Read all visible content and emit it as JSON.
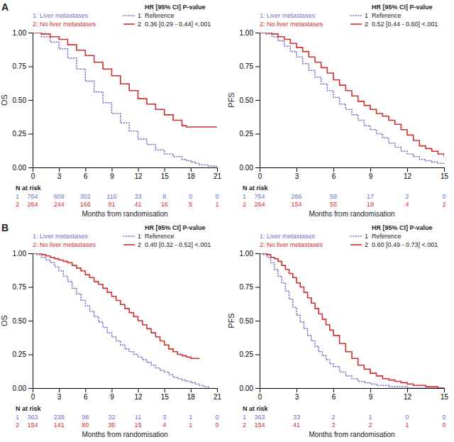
{
  "chart_data": [
    {
      "type": "step",
      "title": "A",
      "xlabel": "Months from randomisation",
      "ylabel": "OS",
      "xlim": [
        0,
        21
      ],
      "xticks": [
        0,
        3,
        6,
        9,
        12,
        15,
        18,
        21
      ],
      "ylim": [
        0,
        1.0
      ],
      "yticks": [
        {
          "value": 0.0,
          "label": "0.00"
        },
        0.25,
        {
          "value": 0.5,
          "label": "0.50"
        },
        0.75,
        {
          "value": 1.0,
          "label": "1.00"
        }
      ],
      "legend": "top",
      "legend_title": "HR [95% CI] P-value",
      "risk_title": "N at risk",
      "risk_times": [
        0,
        3,
        6,
        9,
        12,
        15,
        18,
        21
      ],
      "series": [
        {
          "name": "1: Liver metastases",
          "label": "1",
          "color": "#7070c8",
          "line_style": "dotted",
          "hr": "Reference",
          "x": [
            0,
            1,
            2,
            3,
            4,
            5,
            6,
            7,
            8,
            9,
            10,
            11,
            12,
            13,
            14,
            15,
            16,
            17,
            17.5,
            18,
            18.5,
            19,
            19.5,
            20,
            20.5,
            21
          ],
          "values": [
            1.0,
            0.97,
            0.93,
            0.88,
            0.81,
            0.73,
            0.64,
            0.56,
            0.48,
            0.4,
            0.33,
            0.27,
            0.21,
            0.17,
            0.13,
            0.1,
            0.08,
            0.06,
            0.05,
            0.04,
            0.03,
            0.02,
            0.02,
            0.01,
            0.01,
            0.01
          ],
          "at_risk": [
            764,
            609,
            302,
            116,
            33,
            8,
            0,
            0
          ]
        },
        {
          "name": "2: No liver metastases",
          "label": "2",
          "color": "#d03030",
          "line_style": "solid",
          "hr": "0.36 [0.29 - 0.44] <.001",
          "x": [
            0,
            1,
            2,
            3,
            4,
            5,
            6,
            7,
            8,
            9,
            10,
            11,
            12,
            13,
            14,
            15,
            16,
            17,
            17.5,
            18,
            18.5,
            19,
            19.5,
            20,
            20.5,
            21
          ],
          "values": [
            1.0,
            0.99,
            0.97,
            0.95,
            0.91,
            0.87,
            0.83,
            0.78,
            0.73,
            0.68,
            0.62,
            0.57,
            0.51,
            0.47,
            0.43,
            0.39,
            0.35,
            0.31,
            0.3,
            0.3,
            0.3,
            0.3,
            0.3,
            0.3,
            0.3,
            0.3
          ],
          "at_risk": [
            264,
            244,
            166,
            81,
            41,
            16,
            5,
            1
          ]
        }
      ]
    },
    {
      "type": "step",
      "xlabel": "Months from randomisation",
      "ylabel": "PFS",
      "xlim": [
        0,
        15
      ],
      "xticks": [
        0,
        3,
        6,
        9,
        12,
        15
      ],
      "ylim": [
        0,
        1.0
      ],
      "yticks": [
        {
          "value": 0.0,
          "label": "0.00"
        },
        0.25,
        {
          "value": 0.5,
          "label": "0.50"
        },
        0.75,
        {
          "value": 1.0,
          "label": "1.00"
        }
      ],
      "legend": "top",
      "legend_title": "HR [95% CI] P-value",
      "risk_title": "N at risk",
      "risk_times": [
        0,
        3,
        6,
        9,
        12,
        15
      ],
      "series": [
        {
          "name": "1: Liver metastases",
          "label": "1",
          "color": "#7070c8",
          "line_style": "dotted",
          "hr": "Reference",
          "x": [
            0,
            0.5,
            1,
            1.5,
            2,
            2.5,
            3,
            3.5,
            4,
            4.5,
            5,
            5.5,
            6,
            6.5,
            7,
            7.5,
            8,
            8.5,
            9,
            9.5,
            10,
            10.5,
            11,
            11.5,
            12,
            12.5,
            13,
            13.5,
            14,
            14.5,
            15
          ],
          "values": [
            1.0,
            0.99,
            0.97,
            0.94,
            0.9,
            0.86,
            0.82,
            0.77,
            0.72,
            0.67,
            0.62,
            0.57,
            0.52,
            0.47,
            0.43,
            0.39,
            0.35,
            0.31,
            0.28,
            0.25,
            0.22,
            0.18,
            0.15,
            0.12,
            0.1,
            0.08,
            0.06,
            0.05,
            0.04,
            0.03,
            0.02
          ],
          "at_risk": [
            764,
            266,
            59,
            17,
            2,
            0
          ]
        },
        {
          "name": "2: No liver metastases",
          "label": "2",
          "color": "#d03030",
          "line_style": "solid",
          "hr": "0.52 [0.44 - 0.60] <.001",
          "x": [
            0,
            0.5,
            1,
            1.5,
            2,
            2.5,
            3,
            3.5,
            4,
            4.5,
            5,
            5.5,
            6,
            6.5,
            7,
            7.5,
            8,
            8.5,
            9,
            9.5,
            10,
            10.5,
            11,
            11.5,
            12,
            12.5,
            13,
            13.5,
            14,
            14.5,
            15
          ],
          "values": [
            1.0,
            1.0,
            0.99,
            0.97,
            0.95,
            0.92,
            0.89,
            0.86,
            0.82,
            0.78,
            0.74,
            0.7,
            0.65,
            0.61,
            0.57,
            0.53,
            0.49,
            0.46,
            0.43,
            0.4,
            0.38,
            0.35,
            0.32,
            0.28,
            0.24,
            0.2,
            0.16,
            0.14,
            0.12,
            0.1,
            0.08
          ],
          "at_risk": [
            264,
            154,
            55,
            19,
            4,
            2
          ]
        }
      ]
    },
    {
      "type": "step",
      "title": "B",
      "xlabel": "Months from randomisation",
      "ylabel": "OS",
      "xlim": [
        0,
        21
      ],
      "xticks": [
        0,
        3,
        6,
        9,
        12,
        15,
        18,
        21
      ],
      "ylim": [
        0,
        1.0
      ],
      "yticks": [
        {
          "value": 0.0,
          "label": "0.00"
        },
        0.25,
        {
          "value": 0.5,
          "label": "0.50"
        },
        0.75,
        {
          "value": 1.0,
          "label": "1.00"
        }
      ],
      "legend": "top",
      "legend_title": "HR [95% CI] P-value",
      "risk_title": "N at risk",
      "risk_times": [
        0,
        3,
        6,
        9,
        12,
        15,
        18,
        21
      ],
      "series": [
        {
          "name": "1: Liver metastases",
          "label": "1",
          "color": "#7070c8",
          "line_style": "dotted",
          "hr": "Reference",
          "x": [
            0,
            0.5,
            1,
            1.5,
            2,
            2.5,
            3,
            3.5,
            4,
            4.5,
            5,
            5.5,
            6,
            6.5,
            7,
            7.5,
            8,
            8.5,
            9,
            9.5,
            10,
            10.5,
            11,
            11.5,
            12,
            12.5,
            13,
            13.5,
            14,
            14.5,
            15,
            15.5,
            16,
            16.5,
            17,
            17.5,
            18,
            18.5,
            19,
            19.5,
            20
          ],
          "values": [
            1.0,
            0.99,
            0.97,
            0.95,
            0.93,
            0.9,
            0.87,
            0.83,
            0.79,
            0.74,
            0.7,
            0.65,
            0.61,
            0.57,
            0.53,
            0.49,
            0.45,
            0.41,
            0.38,
            0.35,
            0.32,
            0.29,
            0.27,
            0.25,
            0.23,
            0.21,
            0.19,
            0.17,
            0.15,
            0.13,
            0.12,
            0.1,
            0.08,
            0.07,
            0.06,
            0.05,
            0.04,
            0.03,
            0.02,
            0.01,
            0.0
          ],
          "at_risk": [
            363,
            238,
            98,
            32,
            11,
            3,
            1,
            0
          ]
        },
        {
          "name": "2: No liver metastases",
          "label": "2",
          "color": "#d03030",
          "line_style": "solid",
          "hr": "0.40 [0.32 - 0.52] <.001",
          "x": [
            0,
            0.5,
            1,
            1.5,
            2,
            2.5,
            3,
            3.5,
            4,
            4.5,
            5,
            5.5,
            6,
            6.5,
            7,
            7.5,
            8,
            8.5,
            9,
            9.5,
            10,
            10.5,
            11,
            11.5,
            12,
            12.5,
            13,
            13.5,
            14,
            14.5,
            15,
            15.5,
            16,
            16.5,
            17,
            17.5,
            18,
            18.5,
            19
          ],
          "values": [
            1.0,
            1.0,
            0.99,
            0.98,
            0.97,
            0.96,
            0.95,
            0.94,
            0.93,
            0.91,
            0.89,
            0.87,
            0.84,
            0.82,
            0.79,
            0.77,
            0.74,
            0.71,
            0.68,
            0.65,
            0.62,
            0.59,
            0.56,
            0.53,
            0.5,
            0.47,
            0.44,
            0.41,
            0.38,
            0.35,
            0.32,
            0.29,
            0.27,
            0.25,
            0.24,
            0.23,
            0.22,
            0.22,
            0.22
          ],
          "at_risk": [
            154,
            141,
            80,
            35,
            15,
            4,
            1,
            0
          ]
        }
      ]
    },
    {
      "type": "step",
      "xlabel": "Months from randomisation",
      "ylabel": "PFS",
      "xlim": [
        0,
        15
      ],
      "xticks": [
        0,
        3,
        6,
        9,
        12,
        15
      ],
      "ylim": [
        0,
        1.0
      ],
      "yticks": [
        {
          "value": 0.0,
          "label": "0.00"
        },
        0.25,
        {
          "value": 0.5,
          "label": "0.50"
        },
        0.75,
        {
          "value": 1.0,
          "label": "1.00"
        }
      ],
      "legend": "top",
      "legend_title": "HR [95% CI] P-value",
      "risk_title": "N at risk",
      "risk_times": [
        0,
        3,
        6,
        9,
        12,
        15
      ],
      "series": [
        {
          "name": "1: Liver metastases",
          "label": "1",
          "color": "#7070c8",
          "line_style": "dotted",
          "hr": "Reference",
          "x": [
            0,
            0.3,
            0.6,
            0.9,
            1.2,
            1.5,
            1.8,
            2.1,
            2.4,
            2.7,
            3.0,
            3.3,
            3.6,
            3.9,
            4.2,
            4.5,
            4.8,
            5.1,
            5.4,
            5.7,
            6.0,
            6.5,
            7.0,
            7.5,
            8.0,
            8.5,
            9.0,
            9.5,
            10.0,
            10.5,
            11.0,
            11.5,
            12.0,
            12.5,
            13.0,
            13.5,
            14.0,
            14.5,
            15.0
          ],
          "values": [
            1.0,
            0.99,
            0.97,
            0.93,
            0.88,
            0.83,
            0.78,
            0.72,
            0.66,
            0.6,
            0.54,
            0.49,
            0.44,
            0.39,
            0.35,
            0.31,
            0.27,
            0.24,
            0.21,
            0.18,
            0.16,
            0.12,
            0.09,
            0.07,
            0.05,
            0.04,
            0.03,
            0.02,
            0.02,
            0.01,
            0.01,
            0.01,
            0.0,
            0.0,
            0.0,
            0.0,
            0.0,
            0.0,
            0.0
          ],
          "at_risk": [
            363,
            33,
            2,
            1,
            0,
            0
          ]
        },
        {
          "name": "2: No liver metastases",
          "label": "2",
          "color": "#d03030",
          "line_style": "solid",
          "hr": "0.60 [0.49 - 0.73] <.001",
          "x": [
            0,
            0.3,
            0.6,
            0.9,
            1.2,
            1.5,
            1.8,
            2.1,
            2.4,
            2.7,
            3.0,
            3.3,
            3.6,
            3.9,
            4.2,
            4.5,
            4.8,
            5.1,
            5.4,
            5.7,
            6.0,
            6.5,
            7.0,
            7.5,
            8.0,
            8.5,
            9.0,
            9.5,
            10.0,
            10.5,
            11.0,
            11.5,
            12.0,
            12.5,
            13.0,
            13.5,
            14.0,
            14.5,
            15.0
          ],
          "values": [
            1.0,
            1.0,
            0.99,
            0.97,
            0.96,
            0.94,
            0.91,
            0.88,
            0.85,
            0.82,
            0.78,
            0.75,
            0.71,
            0.67,
            0.63,
            0.59,
            0.55,
            0.51,
            0.47,
            0.43,
            0.39,
            0.33,
            0.27,
            0.22,
            0.17,
            0.14,
            0.11,
            0.09,
            0.07,
            0.06,
            0.05,
            0.04,
            0.03,
            0.02,
            0.02,
            0.01,
            0.01,
            0.0,
            0.0
          ],
          "at_risk": [
            154,
            41,
            3,
            2,
            1,
            0
          ]
        }
      ]
    }
  ]
}
